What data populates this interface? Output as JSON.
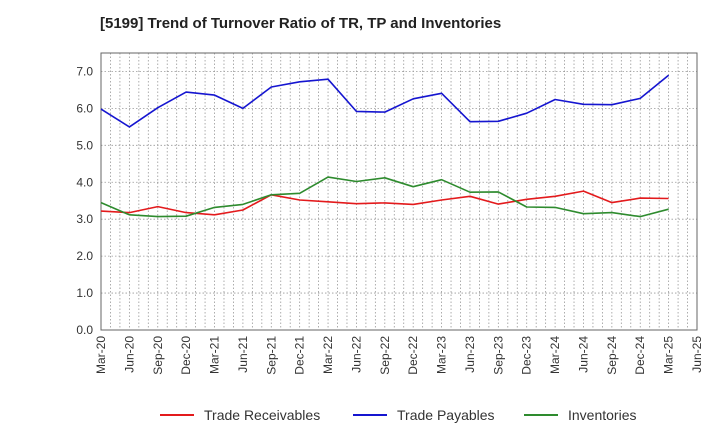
{
  "chart_data": {
    "type": "line",
    "title": "[5199]  Trend of Turnover Ratio of TR, TP and Inventories",
    "xlabel": "",
    "ylabel": "",
    "ylim": [
      0,
      7.5
    ],
    "yticks": [
      "0.0",
      "1.0",
      "2.0",
      "3.0",
      "4.0",
      "5.0",
      "6.0",
      "7.0"
    ],
    "x_tick_labels": [
      "Mar-20",
      "Jun-20",
      "Sep-20",
      "Dec-20",
      "Mar-21",
      "Jun-21",
      "Sep-21",
      "Dec-21",
      "Mar-22",
      "Jun-22",
      "Sep-22",
      "Dec-22",
      "Mar-23",
      "Jun-23",
      "Sep-23",
      "Dec-23",
      "Mar-24",
      "Jun-24",
      "Sep-24",
      "Dec-24",
      "Mar-25",
      "Jun-25"
    ],
    "categories": [
      "Mar-20",
      "Jun-20",
      "Sep-20",
      "Dec-20",
      "Mar-21",
      "Jun-21",
      "Sep-21",
      "Dec-21",
      "Mar-22",
      "Jun-22",
      "Sep-22",
      "Dec-22",
      "Mar-23",
      "Jun-23",
      "Sep-23",
      "Dec-23",
      "Mar-24",
      "Jun-24",
      "Sep-24",
      "Dec-24",
      "Mar-25"
    ],
    "grid": true,
    "legend_position": "bottom",
    "series": [
      {
        "name": "Trade Receivables",
        "color": "#e31a1c",
        "values": [
          3.22,
          3.18,
          3.34,
          3.18,
          3.12,
          3.25,
          3.66,
          3.52,
          3.47,
          3.42,
          3.44,
          3.4,
          3.52,
          3.62,
          3.41,
          3.54,
          3.62,
          3.76,
          3.45,
          3.57,
          3.56
        ]
      },
      {
        "name": "Trade Payables",
        "color": "#1515d0",
        "values": [
          5.98,
          5.5,
          6.02,
          6.44,
          6.36,
          6.0,
          6.58,
          6.72,
          6.79,
          5.92,
          5.9,
          6.26,
          6.41,
          5.64,
          5.65,
          5.87,
          6.24,
          6.11,
          6.1,
          6.27,
          6.9
        ]
      },
      {
        "name": "Inventories",
        "color": "#2e8b2e",
        "values": [
          3.45,
          3.12,
          3.07,
          3.08,
          3.32,
          3.4,
          3.66,
          3.7,
          4.14,
          4.02,
          4.12,
          3.88,
          4.07,
          3.73,
          3.74,
          3.33,
          3.32,
          3.15,
          3.18,
          3.07,
          3.27
        ]
      }
    ]
  }
}
